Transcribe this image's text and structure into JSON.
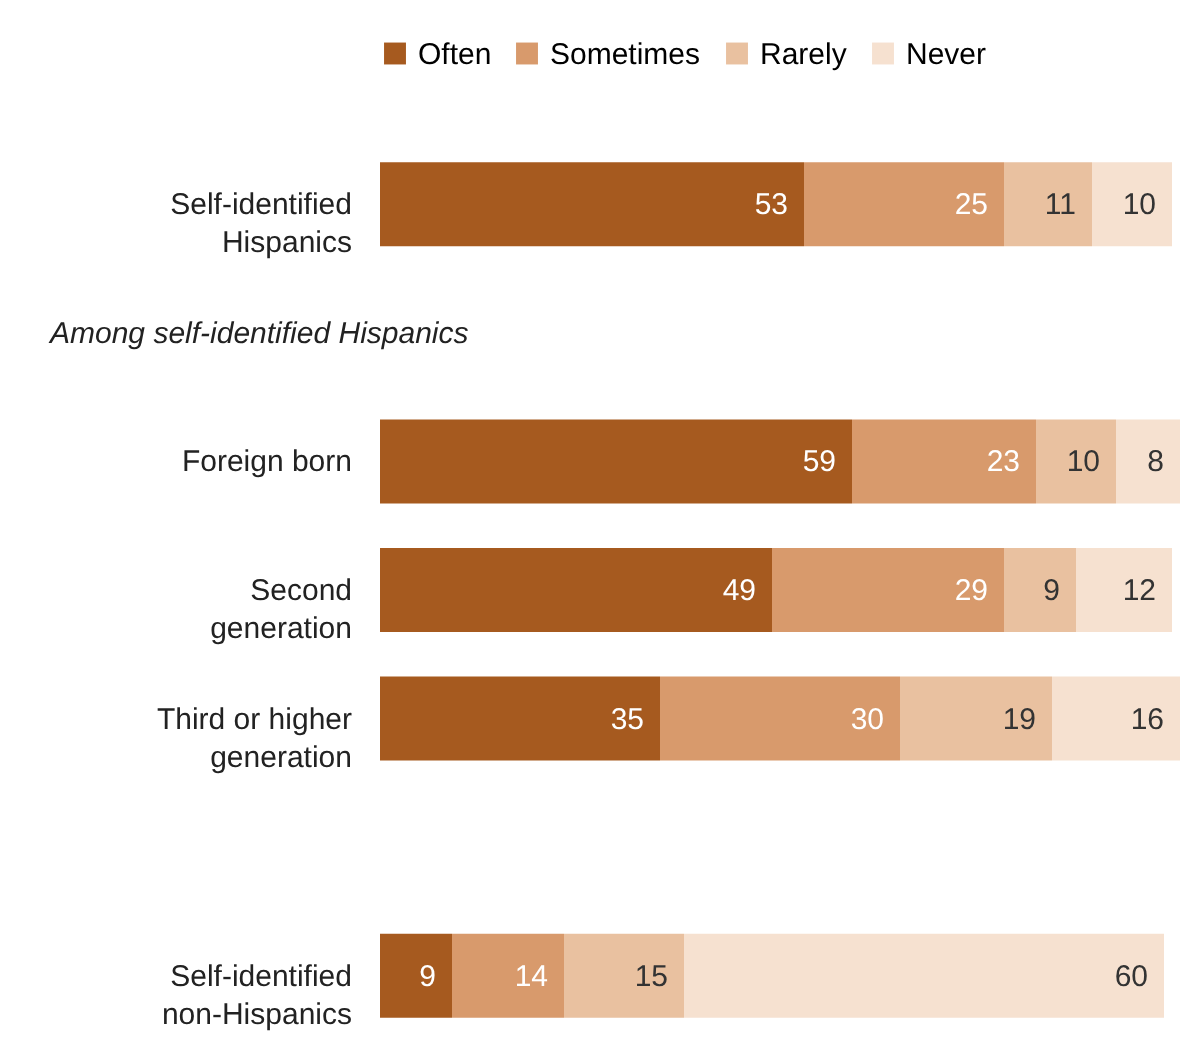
{
  "chart_data": {
    "type": "bar",
    "orientation": "horizontal",
    "stacked": true,
    "data_labels": true,
    "legend": "top",
    "categories": [
      "Self-identified Hispanics",
      "Foreign born",
      "Second generation",
      "Third or higher generation",
      "Self-identified non-Hispanics"
    ],
    "series": [
      {
        "name": "Often",
        "color": "#a65a1f",
        "values": [
          53,
          59,
          49,
          35,
          9
        ]
      },
      {
        "name": "Sometimes",
        "color": "#d89a6c",
        "values": [
          25,
          23,
          29,
          30,
          14
        ]
      },
      {
        "name": "Rarely",
        "color": "#e9c1a0",
        "values": [
          11,
          10,
          9,
          19,
          15
        ]
      },
      {
        "name": "Never",
        "color": "#f6e1d0",
        "values": [
          10,
          8,
          12,
          16,
          60
        ]
      }
    ],
    "annotations": [
      "Among self-identified Hispanics"
    ]
  }
}
